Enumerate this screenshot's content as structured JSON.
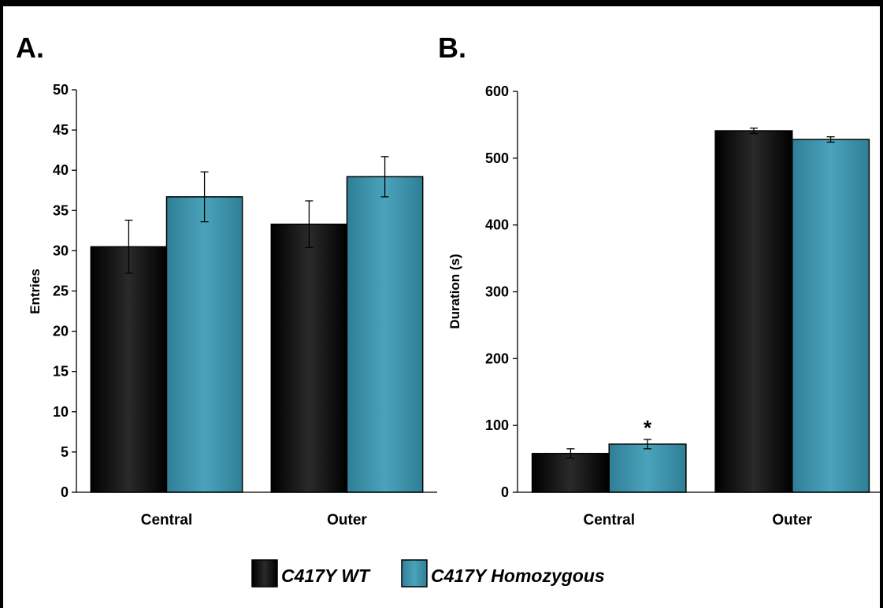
{
  "colors": {
    "wt": "#111111",
    "hom": "#3e95ad"
  },
  "legend": [
    {
      "label": "C417Y WT",
      "color": "#111111"
    },
    {
      "label": "C417Y Homozygous",
      "color": "#3e95ad"
    }
  ],
  "chart_data": [
    {
      "panel_label": "A.",
      "type": "bar",
      "ylabel": "Entries",
      "ylim": [
        0,
        50
      ],
      "yticks": [
        0,
        5,
        10,
        15,
        20,
        25,
        30,
        35,
        40,
        45,
        50
      ],
      "categories": [
        "Central",
        "Outer"
      ],
      "series": [
        {
          "name": "C417Y WT",
          "values": [
            30.5,
            33.3
          ],
          "errors": [
            3.3,
            2.9
          ]
        },
        {
          "name": "C417Y Homozygous",
          "values": [
            36.7,
            39.2
          ],
          "errors": [
            3.1,
            2.5
          ]
        }
      ],
      "annotations": []
    },
    {
      "panel_label": "B.",
      "type": "bar",
      "ylabel": "Duration (s)",
      "ylim": [
        0,
        600
      ],
      "yticks": [
        0,
        100,
        200,
        300,
        400,
        500,
        600
      ],
      "categories": [
        "Central",
        "Outer"
      ],
      "series": [
        {
          "name": "C417Y WT",
          "values": [
            58,
            541
          ],
          "errors": [
            7,
            4
          ]
        },
        {
          "name": "C417Y Homozygous",
          "values": [
            72,
            528
          ],
          "errors": [
            7,
            4
          ]
        }
      ],
      "annotations": [
        {
          "category": "Central",
          "series": "C417Y Homozygous",
          "text": "*"
        }
      ]
    }
  ]
}
